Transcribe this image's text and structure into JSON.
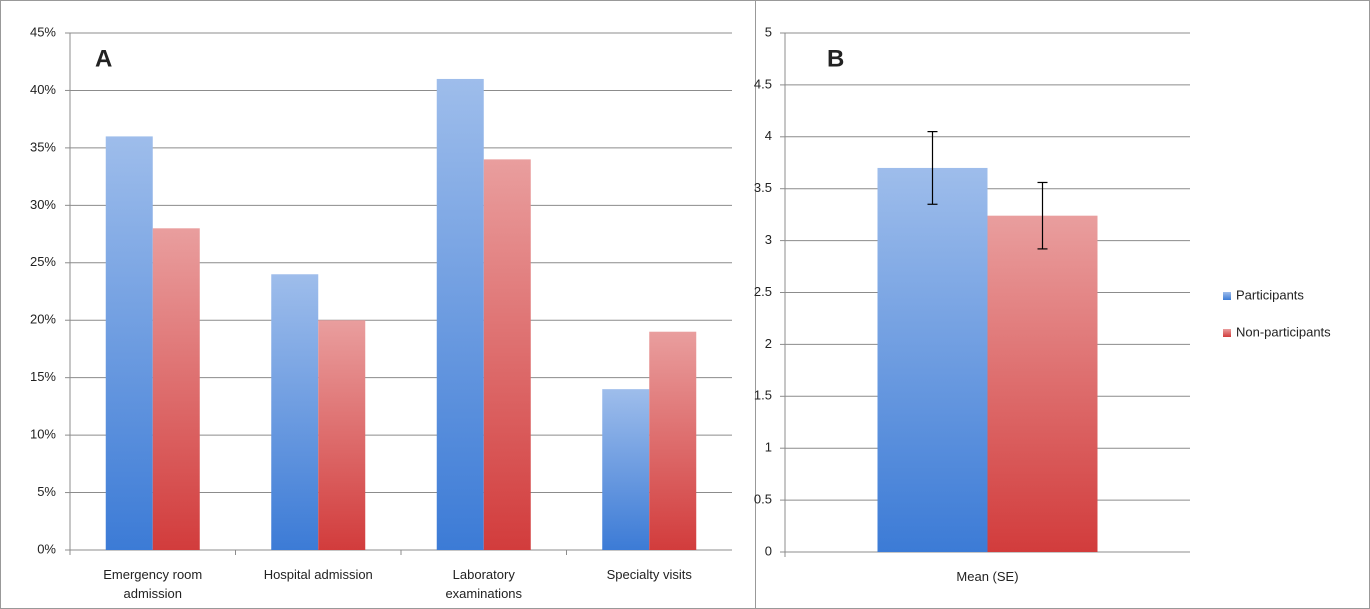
{
  "chart_data": [
    {
      "type": "bar",
      "panel_label": "A",
      "categories": [
        "Emergency room admission",
        "Hospital admission",
        "Laboratory examinations",
        "Specialty visits"
      ],
      "series": [
        {
          "color": "#3c7bd6",
          "values": [
            36,
            24,
            41,
            14
          ]
        },
        {
          "color": "#d23c3c",
          "values": [
            28,
            20,
            34,
            19
          ]
        }
      ],
      "ylim": [
        0,
        45
      ],
      "yticks": [
        {
          "value": 0,
          "label": "0%"
        },
        {
          "value": 5,
          "label": "5%"
        },
        {
          "value": 10,
          "label": "10%"
        },
        {
          "value": 15,
          "label": "15%"
        },
        {
          "value": 20,
          "label": "20%"
        },
        {
          "value": 25,
          "label": "25%"
        },
        {
          "value": 30,
          "label": "30%"
        },
        {
          "value": 35,
          "label": "35%"
        },
        {
          "value": 40,
          "label": "40%"
        },
        {
          "value": 45,
          "label": "45%"
        }
      ],
      "grid": true
    },
    {
      "type": "bar",
      "panel_label": "B",
      "categories": [
        "Mean (SE)"
      ],
      "series": [
        {
          "name": "Participants",
          "color": "#3c7bd6",
          "values": [
            3.7
          ],
          "errors": [
            0.35
          ]
        },
        {
          "name": "Non-participants",
          "color": "#d23c3c",
          "values": [
            3.24
          ],
          "errors": [
            0.32
          ]
        }
      ],
      "ylim": [
        0,
        5
      ],
      "yticks": [
        0,
        0.5,
        1,
        1.5,
        2,
        2.5,
        3,
        3.5,
        4,
        4.5,
        5
      ],
      "grid": true,
      "legend": "right"
    }
  ]
}
